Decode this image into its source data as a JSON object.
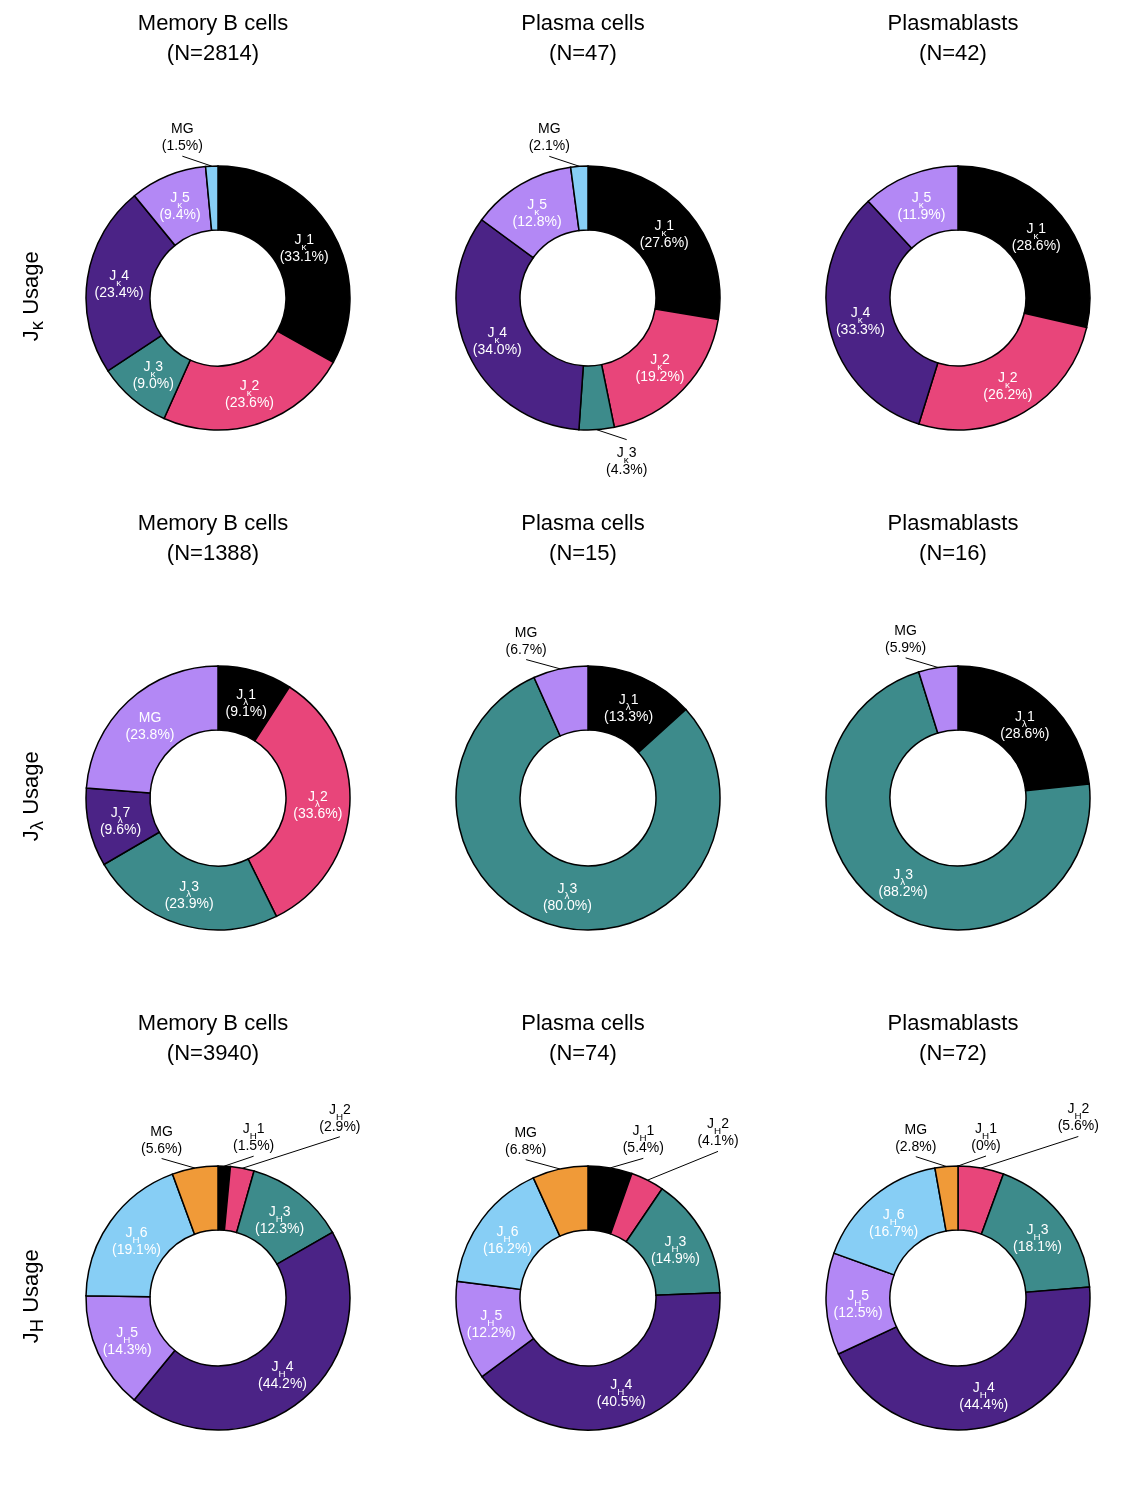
{
  "chart_data": [
    {
      "type": "donut",
      "title": "Memory B cells",
      "subtitle": "(N=2814)",
      "ylabel": "J$_{κ}$ Usage",
      "categories": [
        "J$_{κ}$1",
        "J$_{κ}$2",
        "J$_{κ}$3",
        "J$_{κ}$4",
        "J$_{κ}$5",
        "MG"
      ],
      "values": [
        33.1,
        23.6,
        9.0,
        23.4,
        9.4,
        1.5
      ],
      "value_labels": [
        "(33.1%)",
        "(23.6%)",
        "(9.0%)",
        "(23.4%)",
        "(9.4%)",
        "(1.5%)"
      ],
      "colors": [
        "#000000",
        "#e8457a",
        "#3d8b8b",
        "#4b2386",
        "#b388f5",
        "#87cef5"
      ]
    },
    {
      "type": "donut",
      "title": "Plasma cells",
      "subtitle": "(N=47)",
      "categories": [
        "J$_{κ}$1",
        "J$_{κ}$2",
        "J$_{κ}$3",
        "J$_{κ}$4",
        "J$_{κ}$5",
        "MG"
      ],
      "values": [
        27.6,
        19.2,
        4.3,
        34.0,
        12.8,
        2.1
      ],
      "value_labels": [
        "(27.6%)",
        "(19.2%)",
        "(4.3%)",
        "(34.0%)",
        "(12.8%)",
        "(2.1%)"
      ],
      "colors": [
        "#000000",
        "#e8457a",
        "#3d8b8b",
        "#4b2386",
        "#b388f5",
        "#87cef5"
      ]
    },
    {
      "type": "donut",
      "title": "Plasmablasts",
      "subtitle": "(N=42)",
      "categories": [
        "J$_{κ}$1",
        "J$_{κ}$2",
        "J$_{κ}$4",
        "J$_{κ}$5"
      ],
      "values": [
        28.6,
        26.2,
        33.3,
        11.9
      ],
      "value_labels": [
        "(28.6%)",
        "(26.2%)",
        "(33.3%)",
        "(11.9%)"
      ],
      "colors": [
        "#000000",
        "#e8457a",
        "#4b2386",
        "#b388f5"
      ]
    },
    {
      "type": "donut",
      "title": "Memory B cells",
      "subtitle": "(N=1388)",
      "ylabel": "J$_{λ}$ Usage",
      "categories": [
        "J$_{λ}$1",
        "J$_{λ}$2",
        "J$_{λ}$3",
        "J$_{λ}$7",
        "MG"
      ],
      "values": [
        9.1,
        33.6,
        23.9,
        9.6,
        23.8
      ],
      "value_labels": [
        "(9.1%)",
        "(33.6%)",
        "(23.9%)",
        "(9.6%)",
        "(23.8%)"
      ],
      "colors": [
        "#000000",
        "#e8457a",
        "#3d8b8b",
        "#4b2386",
        "#b388f5"
      ]
    },
    {
      "type": "donut",
      "title": "Plasma cells",
      "subtitle": "(N=15)",
      "categories": [
        "J$_{λ}$1",
        "J$_{λ}$3",
        "MG"
      ],
      "values": [
        13.3,
        80.0,
        6.7
      ],
      "value_labels": [
        "(13.3%)",
        "(80.0%)",
        "(6.7%)"
      ],
      "colors": [
        "#000000",
        "#3d8b8b",
        "#b388f5"
      ]
    },
    {
      "type": "donut",
      "title": "Plasmablasts",
      "subtitle": "(N=16)",
      "categories": [
        "J$_{λ}$1",
        "J$_{λ}$3",
        "MG"
      ],
      "values": [
        28.6,
        88.2,
        5.9
      ],
      "value_labels": [
        "(28.6%)",
        "(88.2%)",
        "(5.9%)"
      ],
      "colors": [
        "#000000",
        "#3d8b8b",
        "#b388f5"
      ]
    },
    {
      "type": "donut",
      "title": "Memory B cells",
      "subtitle": "(N=3940)",
      "ylabel": "J$_{H}$ Usage",
      "categories": [
        "J$_{H}$1",
        "J$_{H}$2",
        "J$_{H}$3",
        "J$_{H}$4",
        "J$_{H}$5",
        "J$_{H}$6",
        "MG"
      ],
      "values": [
        1.5,
        2.9,
        12.3,
        44.2,
        14.3,
        19.1,
        5.6
      ],
      "value_labels": [
        "(1.5%)",
        "(2.9%)",
        "(12.3%)",
        "(44.2%)",
        "(14.3%)",
        "(19.1%)",
        "(5.6%)"
      ],
      "colors": [
        "#000000",
        "#e8457a",
        "#3d8b8b",
        "#4b2386",
        "#b388f5",
        "#87cef5",
        "#f09a38"
      ]
    },
    {
      "type": "donut",
      "title": "Plasma cells",
      "subtitle": "(N=74)",
      "categories": [
        "J$_{H}$1",
        "J$_{H}$2",
        "J$_{H}$3",
        "J$_{H}$4",
        "J$_{H}$5",
        "J$_{H}$6",
        "MG"
      ],
      "values": [
        5.4,
        4.1,
        14.9,
        40.5,
        12.2,
        16.2,
        6.8
      ],
      "value_labels": [
        "(5.4%)",
        "(4.1%)",
        "(14.9%)",
        "(40.5%)",
        "(12.2%)",
        "(16.2%)",
        "(6.8%)"
      ],
      "colors": [
        "#000000",
        "#e8457a",
        "#3d8b8b",
        "#4b2386",
        "#b388f5",
        "#87cef5",
        "#f09a38"
      ]
    },
    {
      "type": "donut",
      "title": "Plasmablasts",
      "subtitle": "(N=72)",
      "categories": [
        "J$_{H}$1",
        "J$_{H}$2",
        "J$_{H}$3",
        "J$_{H}$4",
        "J$_{H}$5",
        "J$_{H}$6",
        "MG"
      ],
      "values": [
        0,
        5.6,
        18.1,
        44.4,
        12.5,
        16.7,
        2.8
      ],
      "value_labels": [
        "(0%)",
        "(5.6%)",
        "(18.1%)",
        "(44.4%)",
        "(12.5%)",
        "(16.7%)",
        "(2.8%)"
      ],
      "colors": [
        "#000000",
        "#e8457a",
        "#3d8b8b",
        "#4b2386",
        "#b388f5",
        "#87cef5",
        "#f09a38"
      ]
    }
  ]
}
